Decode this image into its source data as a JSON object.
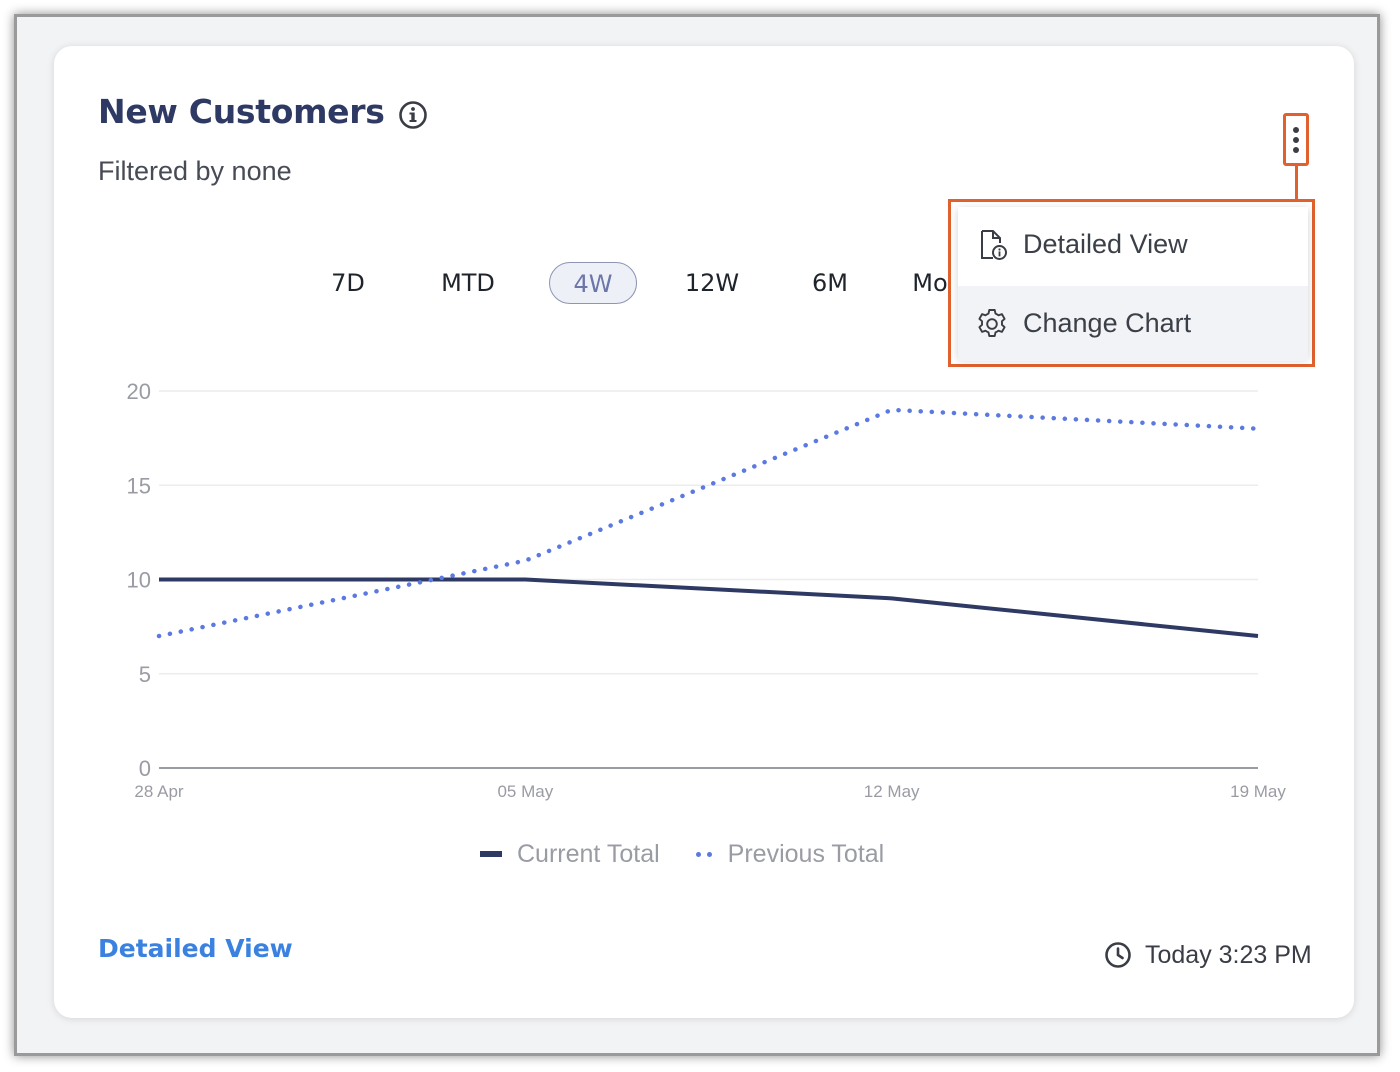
{
  "card": {
    "title": "New Customers",
    "subtitle": "Filtered by none",
    "footer_link": "Detailed View",
    "updated": "Today 3:23 PM"
  },
  "menu": {
    "items": [
      {
        "label": "Detailed View",
        "icon": "document-info-icon"
      },
      {
        "label": "Change Chart",
        "icon": "gear-icon"
      }
    ]
  },
  "ranges": {
    "options": [
      "7D",
      "MTD",
      "4W",
      "12W",
      "6M",
      "Mo"
    ],
    "selected": "4W"
  },
  "colors": {
    "title": "#2e3a63",
    "current_series": "#2e3a63",
    "previous_series": "#5b79e0",
    "highlight": "#e0602e",
    "link": "#3b82e0"
  },
  "chart_data": {
    "type": "line",
    "x": [
      "28 Apr",
      "05 May",
      "12 May",
      "19 May"
    ],
    "series": [
      {
        "name": "Current Total",
        "values": [
          10,
          10,
          9,
          7
        ],
        "style": "solid"
      },
      {
        "name": "Previous Total",
        "values": [
          7,
          11,
          19,
          18
        ],
        "style": "dotted"
      }
    ],
    "yticks": [
      0,
      5,
      10,
      15,
      20
    ],
    "ylim": [
      0,
      20
    ],
    "grid": true,
    "legend": "bottom-center"
  }
}
